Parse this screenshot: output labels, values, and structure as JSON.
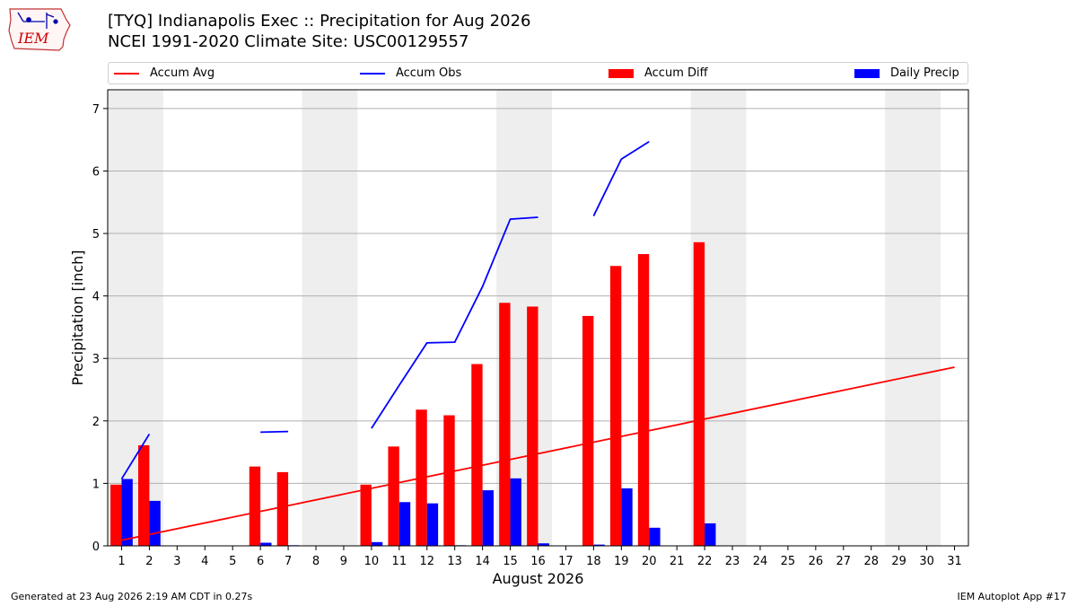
{
  "header": {
    "title_line1": "[TYQ] Indianapolis Exec :: Precipitation for Aug 2026",
    "title_line2": "NCEI 1991-2020 Climate Site: USC00129557"
  },
  "logo": {
    "text": "IEM",
    "icon": "iem-iowa-logo"
  },
  "footer": {
    "generated": "Generated at 23 Aug 2026 2:19 AM CDT in 0.27s",
    "app": "IEM Autoplot App #17"
  },
  "colors": {
    "avg": "#ff0000",
    "obs": "#0000ff",
    "diff": "#ff0000",
    "precip": "#0000ff",
    "weekend": "#eeeeee"
  },
  "chart_data": {
    "type": "bar",
    "title": "[TYQ] Indianapolis Exec :: Precipitation for Aug 2026",
    "xlabel": "August 2026",
    "ylabel": "Precipitation [inch]",
    "xlim": [
      0.5,
      31.5
    ],
    "ylim": [
      0,
      7.3
    ],
    "yticks": [
      0,
      1,
      2,
      3,
      4,
      5,
      6,
      7
    ],
    "x": [
      1,
      2,
      3,
      4,
      5,
      6,
      7,
      8,
      9,
      10,
      11,
      12,
      13,
      14,
      15,
      16,
      17,
      18,
      19,
      20,
      21,
      22,
      23,
      24,
      25,
      26,
      27,
      28,
      29,
      30,
      31
    ],
    "weekend_days": [
      1,
      2,
      8,
      9,
      15,
      16,
      22,
      23,
      29,
      30
    ],
    "grid": "y",
    "legend_position": "top",
    "legend": [
      "Accum Avg",
      "Accum Obs",
      "Accum Diff",
      "Daily Precip"
    ],
    "series": [
      {
        "name": "Accum Avg",
        "type": "line",
        "color": "#ff0000",
        "points": [
          [
            1,
            0.09
          ],
          [
            31,
            2.86
          ]
        ]
      },
      {
        "name": "Accum Obs",
        "type": "line",
        "color": "#0000ff",
        "segments": [
          [
            [
              1,
              1.07
            ],
            [
              2,
              1.79
            ]
          ],
          [
            [
              6,
              1.82
            ],
            [
              7,
              1.83
            ]
          ],
          [
            [
              10,
              1.88
            ],
            [
              11,
              2.57
            ],
            [
              12,
              3.25
            ],
            [
              13,
              3.26
            ],
            [
              14,
              4.15
            ],
            [
              15,
              5.23
            ],
            [
              16,
              5.26
            ]
          ],
          [
            [
              18,
              5.28
            ],
            [
              19,
              6.19
            ],
            [
              20,
              6.47
            ]
          ]
        ]
      },
      {
        "name": "Accum Diff",
        "type": "bar",
        "color": "#ff0000",
        "values": [
          0.98,
          1.61,
          null,
          null,
          null,
          1.27,
          1.18,
          null,
          null,
          0.98,
          1.59,
          2.18,
          2.09,
          2.91,
          3.89,
          3.83,
          null,
          3.68,
          4.48,
          4.67,
          null,
          4.86,
          null,
          null,
          null,
          null,
          null,
          null,
          null,
          null,
          null
        ]
      },
      {
        "name": "Daily Precip",
        "type": "bar",
        "color": "#0000ff",
        "values": [
          1.07,
          0.72,
          null,
          null,
          null,
          0.05,
          0.01,
          null,
          null,
          0.06,
          0.7,
          0.68,
          0.01,
          0.89,
          1.08,
          0.04,
          null,
          0.02,
          0.92,
          0.29,
          null,
          0.36,
          null,
          null,
          null,
          null,
          null,
          null,
          null,
          null,
          null
        ]
      }
    ]
  }
}
